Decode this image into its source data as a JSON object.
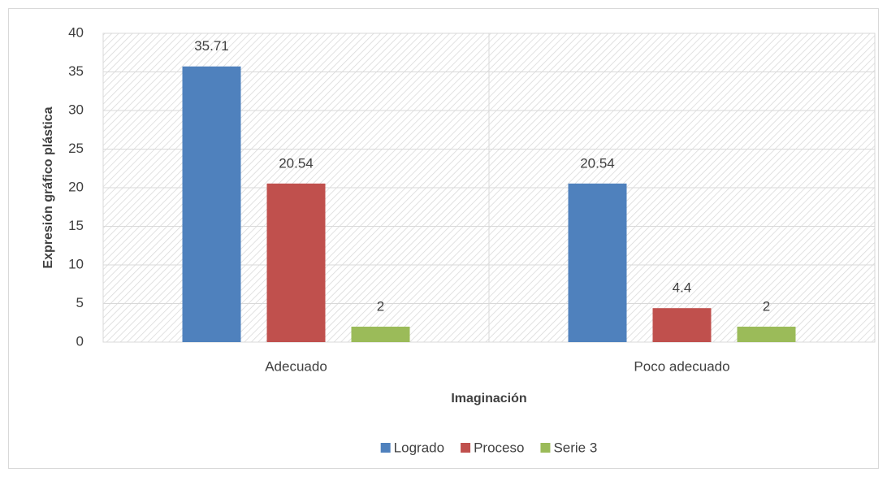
{
  "chart_data": {
    "type": "bar",
    "categories": [
      "Adecuado",
      "Poco adecuado"
    ],
    "series": [
      {
        "name": "Logrado",
        "color": "#4f81bd",
        "values": [
          35.71,
          20.54
        ]
      },
      {
        "name": "Proceso",
        "color": "#c0504d",
        "values": [
          20.54,
          4.4
        ]
      },
      {
        "name": "Serie 3",
        "color": "#9bbb59",
        "values": [
          2,
          2
        ]
      }
    ],
    "xlabel": "Imaginación",
    "ylabel": "Expresión gráfico plástica",
    "ylim": [
      0,
      40
    ],
    "yticks": [
      0,
      5,
      10,
      15,
      20,
      25,
      30,
      35,
      40
    ],
    "grid": true,
    "legend": "bottom"
  }
}
